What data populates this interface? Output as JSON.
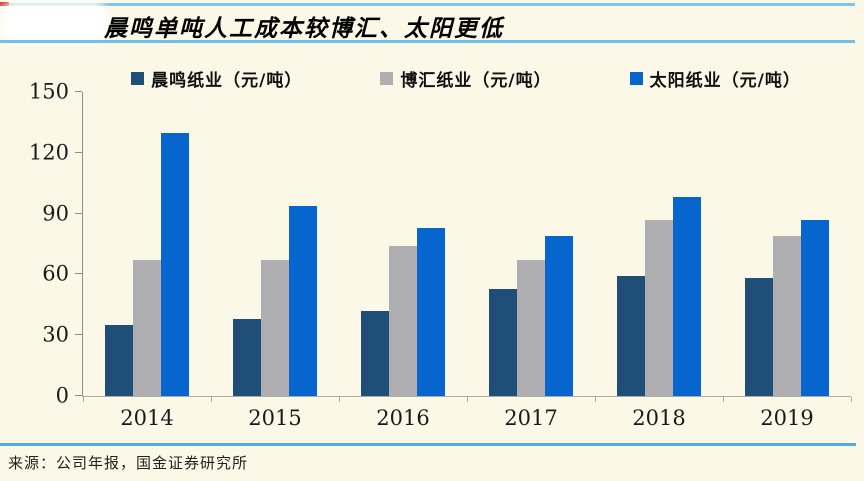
{
  "header": {
    "title": "晨鸣单吨人工成本较博汇、太阳更低"
  },
  "footer": {
    "source": "来源：公司年报，国金证券研究所"
  },
  "colors": {
    "background": "#FCF8E8",
    "accent_red": "#D03A2B",
    "rule_blue": "#6DC0EB",
    "series_chenming": "#1F4E79",
    "series_bohui": "#AFAFB1",
    "series_taiyang": "#0666CE",
    "axis_gray": "#8C8C8C"
  },
  "chart_data": {
    "type": "bar",
    "title": "晨鸣单吨人工成本较博汇、太阳更低",
    "categories": [
      "2014",
      "2015",
      "2016",
      "2017",
      "2018",
      "2019"
    ],
    "series": [
      {
        "name": "晨鸣纸业（元/吨）",
        "color_key": "series_chenming",
        "values": [
          35,
          38,
          42,
          53,
          59,
          58
        ]
      },
      {
        "name": "博汇纸业（元/吨）",
        "color_key": "series_bohui",
        "values": [
          67,
          67,
          74,
          67,
          87,
          79
        ]
      },
      {
        "name": "太阳纸业（元/吨）",
        "color_key": "series_taiyang",
        "values": [
          130,
          94,
          83,
          79,
          98,
          87
        ]
      }
    ],
    "xlabel": "",
    "ylabel": "",
    "ylim": [
      0,
      150
    ],
    "yticks": [
      0,
      30,
      60,
      90,
      120,
      150
    ],
    "grid": false,
    "legend_position": "top"
  }
}
